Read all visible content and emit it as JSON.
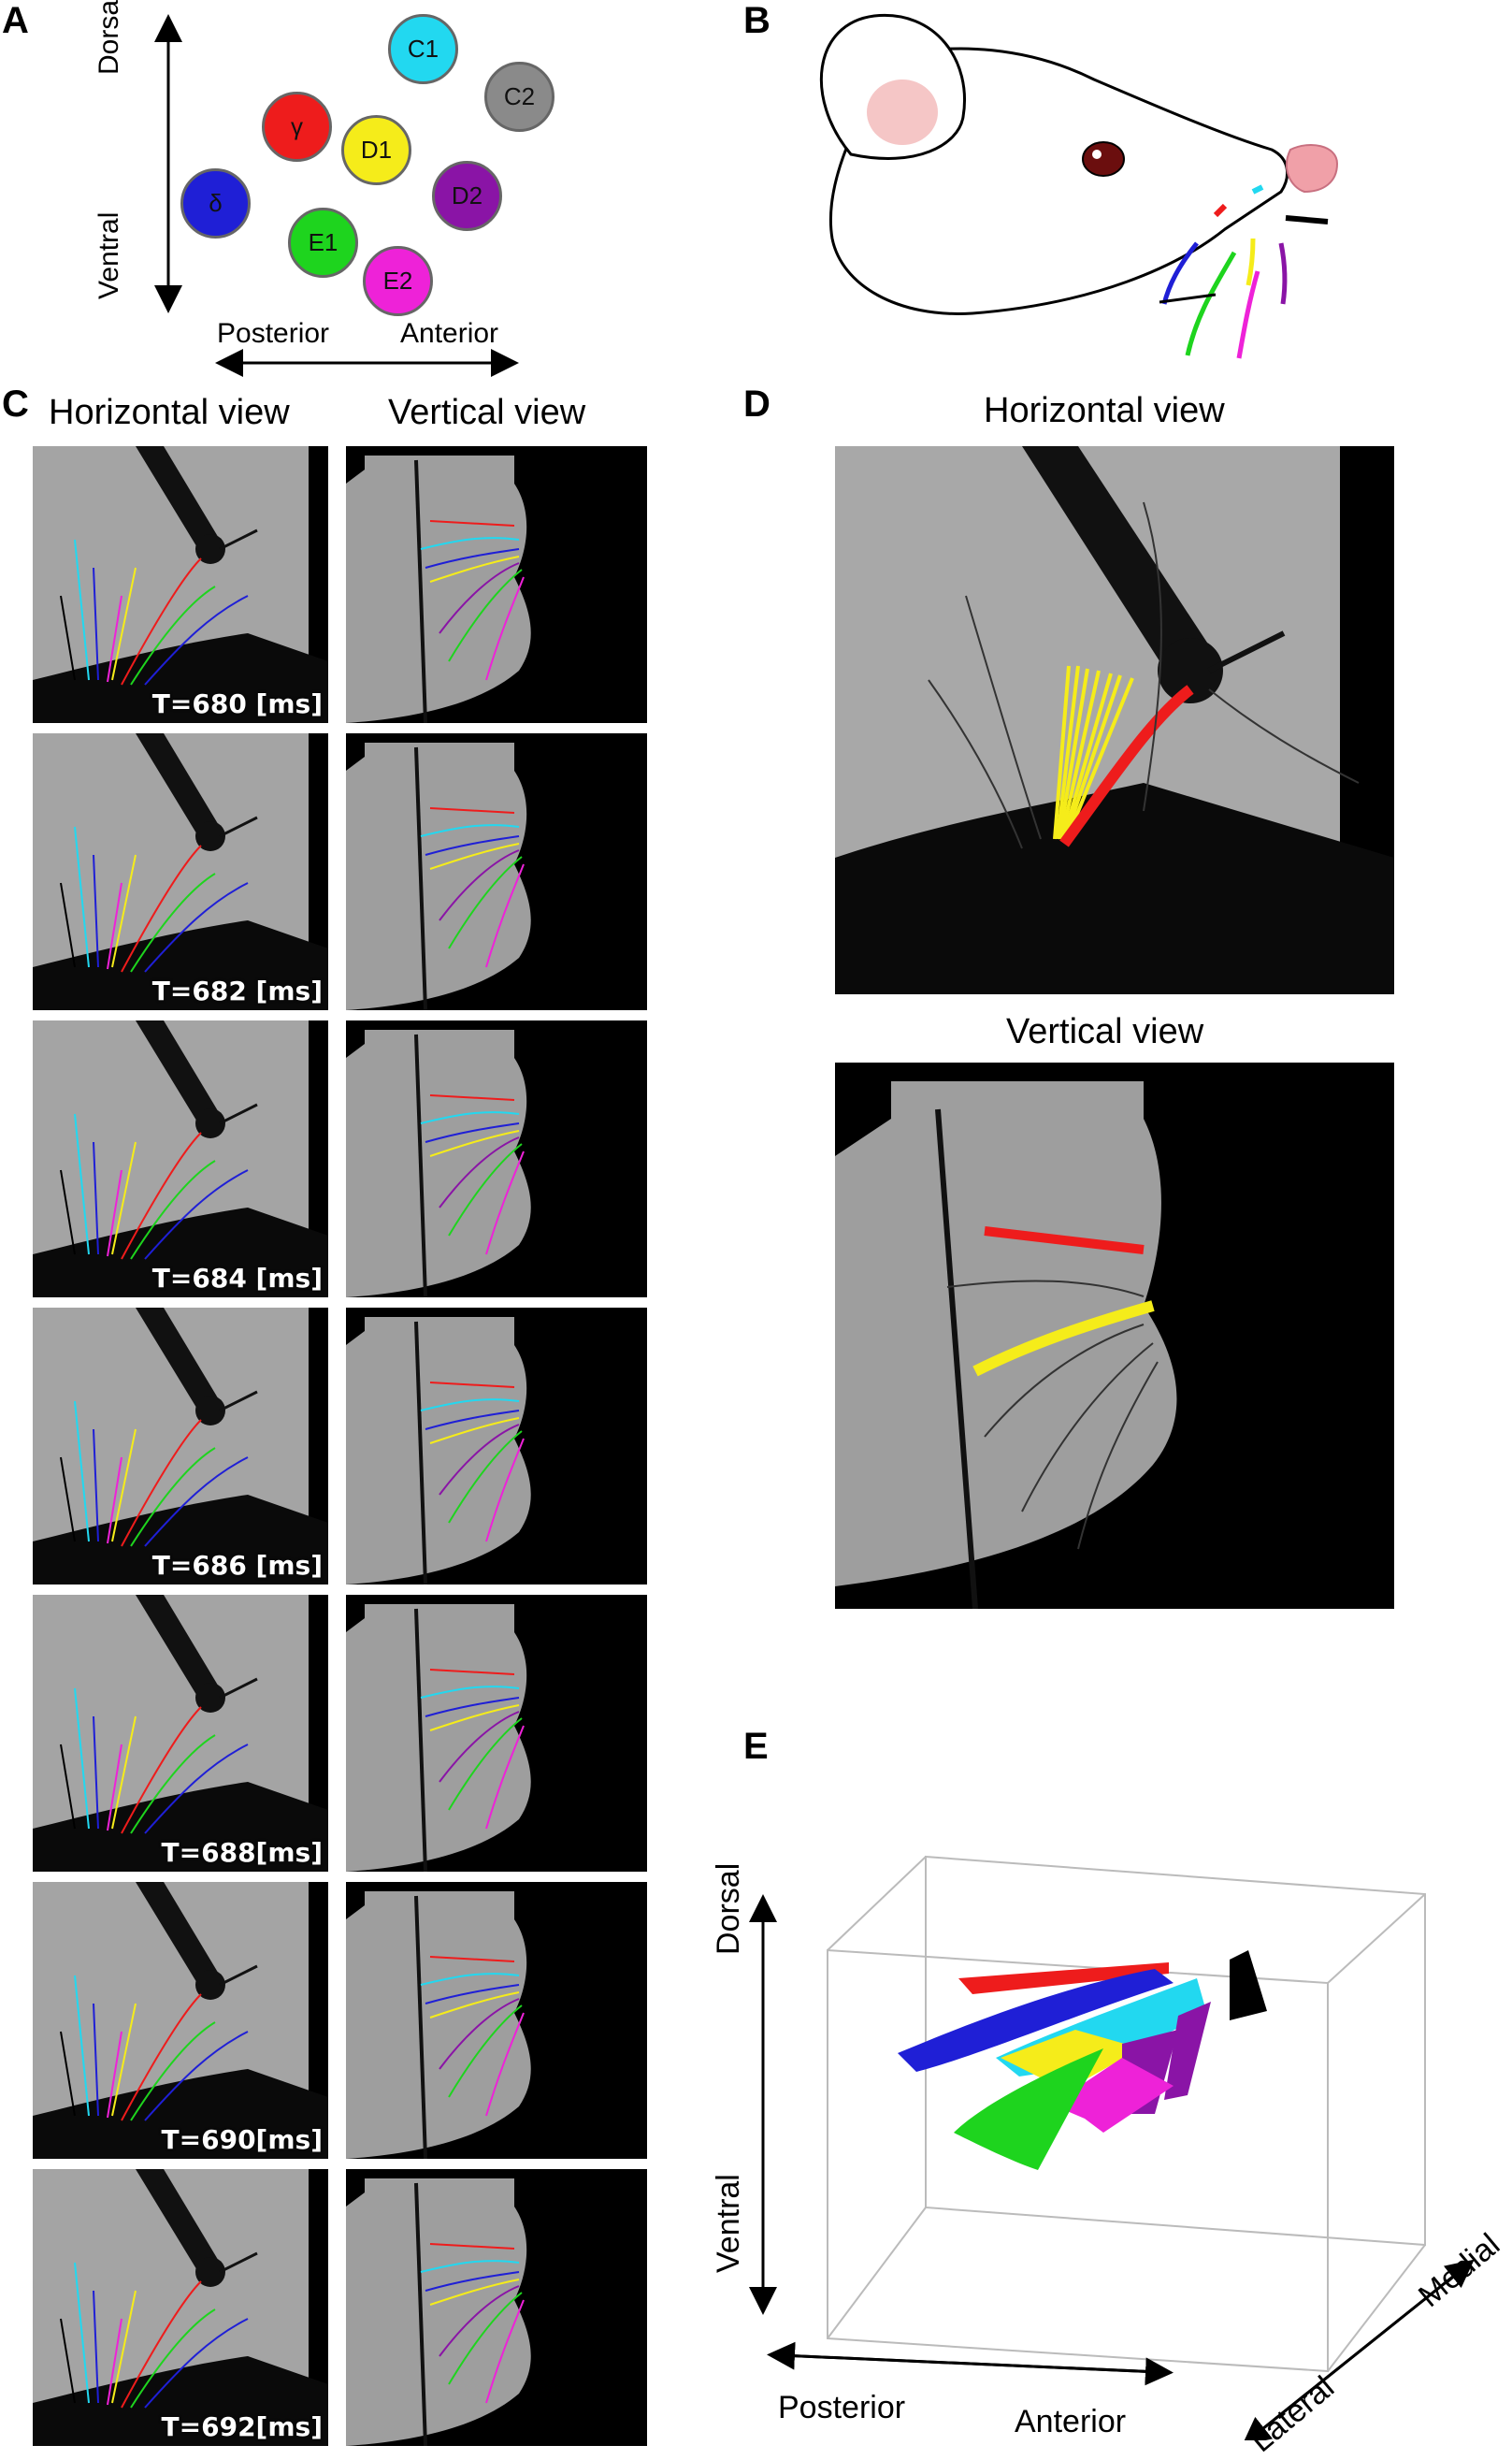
{
  "panels": {
    "A": "A",
    "B": "B",
    "C": "C",
    "D": "D",
    "E": "E"
  },
  "panelA": {
    "dorsal": "Dorsal",
    "ventral": "Ventral",
    "posterior": "Posterior",
    "anterior": "Anterior",
    "whiskers": [
      {
        "label": "C1",
        "color": "#22d8f0"
      },
      {
        "label": "C2",
        "color": "#8a8a8a"
      },
      {
        "label": "γ",
        "color": "#ee1c1c"
      },
      {
        "label": "D1",
        "color": "#f5ec1a"
      },
      {
        "label": "D2",
        "color": "#8a14a6"
      },
      {
        "label": "δ",
        "color": "#1f1fd6"
      },
      {
        "label": "E1",
        "color": "#1ed41e"
      },
      {
        "label": "E2",
        "color": "#ee22d8"
      }
    ]
  },
  "panelC": {
    "horizontal_title": "Horizontal view",
    "vertical_title": "Vertical view",
    "frames": [
      "T=680 [ms]",
      "T=682 [ms]",
      "T=684 [ms]",
      "T=686 [ms]",
      "T=688[ms]",
      "T=690[ms]",
      "T=692[ms]"
    ]
  },
  "panelD": {
    "horizontal_title": "Horizontal view",
    "vertical_title": "Vertical view"
  },
  "panelE": {
    "dorsal": "Dorsal",
    "ventral": "Ventral",
    "posterior": "Posterior",
    "anterior": "Anterior",
    "lateral": "Lateral",
    "medial": "Medial"
  }
}
